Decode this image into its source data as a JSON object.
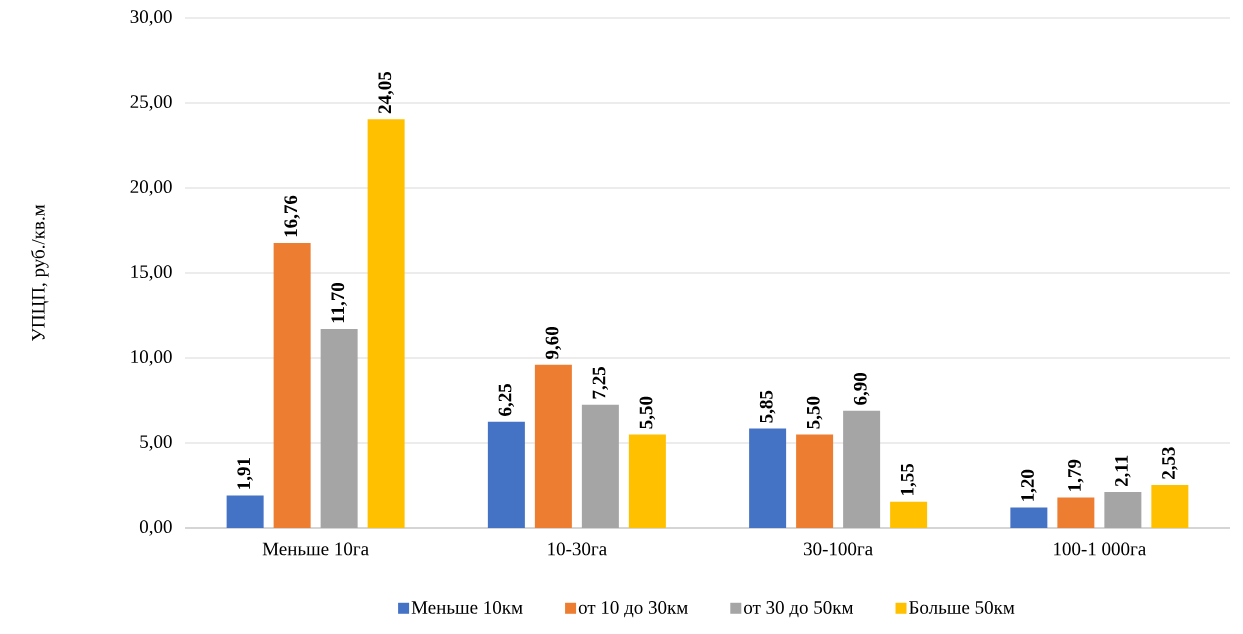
{
  "chart_data": {
    "type": "bar",
    "ylabel": "УПЦП, руб./кв.м",
    "categories": [
      "Меньше 10га",
      "10-30га",
      "30-100га",
      "100-1 000га"
    ],
    "series": [
      {
        "name": "Меньше 10км",
        "color": "#4472c4",
        "values": [
          1.91,
          6.25,
          5.85,
          1.2
        ],
        "value_labels": [
          "1,91",
          "6,25",
          "5,85",
          "1,20"
        ]
      },
      {
        "name": "от 10 до 30км",
        "color": "#ed7d31",
        "values": [
          16.76,
          9.6,
          5.5,
          1.79
        ],
        "value_labels": [
          "16,76",
          "9,60",
          "5,50",
          "1,79"
        ]
      },
      {
        "name": "от 30 до 50км",
        "color": "#a5a5a5",
        "values": [
          11.7,
          7.25,
          6.9,
          2.11
        ],
        "value_labels": [
          "11,70",
          "7,25",
          "6,90",
          "2,11"
        ]
      },
      {
        "name": "Больше 50км",
        "color": "#ffc000",
        "values": [
          24.05,
          5.5,
          1.55,
          2.53
        ],
        "value_labels": [
          "24,05",
          "5,50",
          "1,55",
          "2,53"
        ]
      }
    ],
    "ylim": [
      0,
      30
    ],
    "yticks": [
      {
        "value": 0,
        "label": "0,00"
      },
      {
        "value": 5,
        "label": "5,00"
      },
      {
        "value": 10,
        "label": "10,00"
      },
      {
        "value": 15,
        "label": "15,00"
      },
      {
        "value": 20,
        "label": "20,00"
      },
      {
        "value": 25,
        "label": "25,00"
      },
      {
        "value": 30,
        "label": "30,00"
      }
    ],
    "grid": "y",
    "legend": "bottom"
  }
}
